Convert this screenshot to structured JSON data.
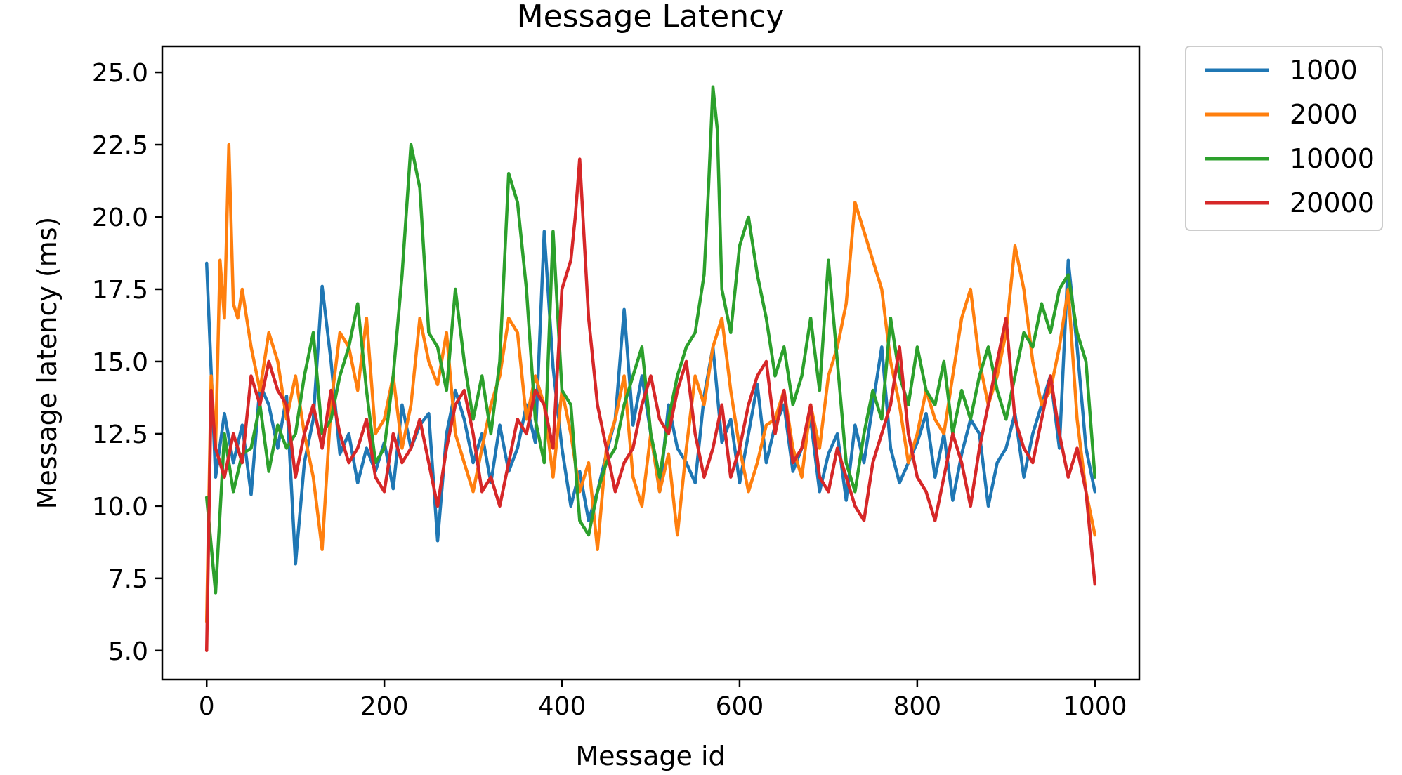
{
  "chart_data": {
    "type": "line",
    "title": "Message Latency",
    "xlabel": "Message id",
    "ylabel": "Message latency (ms)",
    "xlim": [
      -50,
      1050
    ],
    "ylim": [
      4.0,
      25.9
    ],
    "xticks": [
      0,
      200,
      400,
      600,
      800,
      1000
    ],
    "xtick_labels": [
      "0",
      "200",
      "400",
      "600",
      "800",
      "1000"
    ],
    "yticks": [
      5.0,
      7.5,
      10.0,
      12.5,
      15.0,
      17.5,
      20.0,
      22.5,
      25.0
    ],
    "ytick_labels": [
      "5.0",
      "7.5",
      "10.0",
      "12.5",
      "15.0",
      "17.5",
      "20.0",
      "22.5",
      "25.0"
    ],
    "grid": false,
    "legend_position": "outside-top-right",
    "series": [
      {
        "name": "1000",
        "color": "#1f77b4",
        "x": [
          0,
          10,
          20,
          30,
          40,
          50,
          60,
          70,
          80,
          90,
          100,
          110,
          120,
          130,
          140,
          150,
          160,
          170,
          180,
          190,
          200,
          210,
          220,
          230,
          240,
          250,
          260,
          270,
          280,
          290,
          300,
          310,
          320,
          330,
          340,
          350,
          360,
          370,
          380,
          390,
          400,
          410,
          420,
          430,
          440,
          450,
          460,
          470,
          480,
          490,
          500,
          510,
          520,
          530,
          540,
          550,
          560,
          570,
          580,
          590,
          600,
          610,
          620,
          630,
          640,
          650,
          660,
          670,
          680,
          690,
          700,
          710,
          720,
          730,
          740,
          750,
          760,
          770,
          780,
          790,
          800,
          810,
          820,
          830,
          840,
          850,
          860,
          870,
          880,
          890,
          900,
          910,
          920,
          930,
          940,
          950,
          960,
          970,
          980,
          990,
          1000
        ],
        "y": [
          18.4,
          11.0,
          13.2,
          11.5,
          12.8,
          10.4,
          14.2,
          13.5,
          12.0,
          13.8,
          8.0,
          11.5,
          13.0,
          17.6,
          15.0,
          11.8,
          12.5,
          10.8,
          12.0,
          11.2,
          12.2,
          10.6,
          13.5,
          12.0,
          12.8,
          13.2,
          8.8,
          12.5,
          14.0,
          13.0,
          11.5,
          12.5,
          10.8,
          12.8,
          11.2,
          12.0,
          13.5,
          12.2,
          19.5,
          14.8,
          12.0,
          10.0,
          11.2,
          9.5,
          10.5,
          11.8,
          13.0,
          16.8,
          12.8,
          14.5,
          12.5,
          10.5,
          13.5,
          12.0,
          11.5,
          10.8,
          13.8,
          15.5,
          12.2,
          13.0,
          10.8,
          12.5,
          14.2,
          11.5,
          12.8,
          13.5,
          11.2,
          12.0,
          13.0,
          10.5,
          11.8,
          12.5,
          10.2,
          12.8,
          11.5,
          13.5,
          15.5,
          12.0,
          10.8,
          11.5,
          12.2,
          13.2,
          11.0,
          12.5,
          10.2,
          11.8,
          13.0,
          12.5,
          10.0,
          11.5,
          12.0,
          13.2,
          11.0,
          12.5,
          13.5,
          14.5,
          12.0,
          18.5,
          15.5,
          12.0,
          10.5
        ]
      },
      {
        "name": "2000",
        "color": "#ff7f0e",
        "x": [
          0,
          5,
          10,
          15,
          20,
          25,
          30,
          35,
          40,
          50,
          60,
          70,
          80,
          90,
          100,
          110,
          120,
          130,
          140,
          150,
          160,
          170,
          180,
          190,
          200,
          210,
          220,
          230,
          240,
          250,
          260,
          270,
          280,
          290,
          300,
          310,
          320,
          330,
          340,
          350,
          360,
          370,
          380,
          390,
          400,
          410,
          420,
          430,
          440,
          450,
          460,
          470,
          480,
          490,
          500,
          510,
          520,
          530,
          540,
          550,
          560,
          570,
          580,
          590,
          600,
          610,
          620,
          630,
          640,
          650,
          660,
          670,
          680,
          690,
          700,
          710,
          720,
          730,
          740,
          750,
          760,
          770,
          780,
          790,
          800,
          810,
          820,
          830,
          840,
          850,
          860,
          870,
          880,
          890,
          900,
          910,
          920,
          930,
          940,
          950,
          960,
          970,
          980,
          990,
          1000
        ],
        "y": [
          6.0,
          14.5,
          12.0,
          18.5,
          16.5,
          22.5,
          17.0,
          16.5,
          17.5,
          15.5,
          14.0,
          16.0,
          15.0,
          13.0,
          14.5,
          12.5,
          11.0,
          8.5,
          13.5,
          16.0,
          15.5,
          14.0,
          16.5,
          12.5,
          13.0,
          14.5,
          12.0,
          13.5,
          16.5,
          15.0,
          14.2,
          16.0,
          12.5,
          11.5,
          10.5,
          12.0,
          13.5,
          14.5,
          16.5,
          16.0,
          13.0,
          14.5,
          13.5,
          11.0,
          14.0,
          12.5,
          10.5,
          11.5,
          8.5,
          12.0,
          13.0,
          14.5,
          11.0,
          10.0,
          12.5,
          10.5,
          11.8,
          9.0,
          12.0,
          14.5,
          13.5,
          15.5,
          16.5,
          14.0,
          12.0,
          10.5,
          11.5,
          12.8,
          13.0,
          14.0,
          12.0,
          11.0,
          13.5,
          12.0,
          14.5,
          15.5,
          17.0,
          20.5,
          19.5,
          18.5,
          17.5,
          15.0,
          13.5,
          11.5,
          12.5,
          14.0,
          13.0,
          12.5,
          14.5,
          16.5,
          17.5,
          15.0,
          13.5,
          14.5,
          16.0,
          19.0,
          17.5,
          15.0,
          13.5,
          14.0,
          15.5,
          17.5,
          13.0,
          10.5,
          9.0
        ]
      },
      {
        "name": "10000",
        "color": "#2ca02c",
        "x": [
          0,
          10,
          20,
          30,
          40,
          50,
          60,
          70,
          80,
          90,
          100,
          110,
          120,
          130,
          140,
          150,
          160,
          170,
          180,
          190,
          200,
          210,
          220,
          230,
          240,
          250,
          260,
          270,
          280,
          290,
          300,
          310,
          320,
          330,
          340,
          350,
          360,
          370,
          380,
          390,
          400,
          410,
          420,
          430,
          440,
          450,
          460,
          470,
          480,
          490,
          500,
          510,
          520,
          530,
          540,
          550,
          560,
          565,
          570,
          575,
          580,
          590,
          600,
          610,
          620,
          630,
          640,
          650,
          660,
          670,
          680,
          690,
          700,
          710,
          720,
          730,
          740,
          750,
          760,
          770,
          780,
          790,
          800,
          810,
          820,
          830,
          840,
          850,
          860,
          870,
          880,
          890,
          900,
          910,
          920,
          930,
          940,
          950,
          960,
          970,
          980,
          990,
          1000
        ],
        "y": [
          10.3,
          7.0,
          12.5,
          10.5,
          11.8,
          12.0,
          13.5,
          11.2,
          12.8,
          12.0,
          12.5,
          14.5,
          16.0,
          12.5,
          13.0,
          14.5,
          15.5,
          17.0,
          14.0,
          11.5,
          12.0,
          14.5,
          18.0,
          22.5,
          21.0,
          16.0,
          15.5,
          14.0,
          17.5,
          15.0,
          13.0,
          14.5,
          12.5,
          15.0,
          21.5,
          20.5,
          17.5,
          13.0,
          11.5,
          19.5,
          14.0,
          13.5,
          9.5,
          9.0,
          10.5,
          11.5,
          12.0,
          13.5,
          14.5,
          15.5,
          12.5,
          11.0,
          13.0,
          14.5,
          15.5,
          16.0,
          18.0,
          21.0,
          24.5,
          23.0,
          17.5,
          16.0,
          19.0,
          20.0,
          18.0,
          16.5,
          14.5,
          15.5,
          13.5,
          14.5,
          16.5,
          14.0,
          18.5,
          15.0,
          11.5,
          10.5,
          12.5,
          14.0,
          13.0,
          16.5,
          14.5,
          13.5,
          15.5,
          14.0,
          13.5,
          15.0,
          12.5,
          14.0,
          13.0,
          14.5,
          15.5,
          14.0,
          13.0,
          14.5,
          16.0,
          15.5,
          17.0,
          16.0,
          17.5,
          18.0,
          16.0,
          15.0,
          11.0
        ]
      },
      {
        "name": "20000",
        "color": "#d62728",
        "x": [
          0,
          5,
          10,
          20,
          30,
          40,
          50,
          60,
          70,
          80,
          90,
          100,
          110,
          120,
          130,
          140,
          150,
          160,
          170,
          180,
          190,
          200,
          210,
          220,
          230,
          240,
          250,
          260,
          270,
          280,
          290,
          300,
          310,
          320,
          330,
          340,
          350,
          360,
          370,
          380,
          390,
          400,
          410,
          415,
          420,
          430,
          440,
          450,
          460,
          470,
          480,
          490,
          500,
          510,
          520,
          530,
          540,
          550,
          560,
          570,
          580,
          590,
          600,
          610,
          620,
          630,
          640,
          650,
          660,
          670,
          680,
          690,
          700,
          710,
          720,
          730,
          740,
          750,
          760,
          770,
          780,
          790,
          800,
          810,
          820,
          830,
          840,
          850,
          860,
          870,
          880,
          890,
          900,
          910,
          920,
          930,
          940,
          950,
          960,
          970,
          980,
          990,
          1000
        ],
        "y": [
          5.0,
          14.0,
          12.0,
          11.0,
          12.5,
          11.5,
          14.5,
          13.5,
          15.0,
          14.0,
          13.5,
          11.0,
          12.5,
          13.5,
          12.0,
          14.0,
          12.5,
          11.5,
          12.0,
          13.0,
          11.0,
          10.5,
          12.5,
          11.5,
          12.0,
          13.0,
          11.5,
          10.0,
          12.0,
          13.5,
          14.0,
          12.5,
          10.5,
          11.0,
          10.0,
          11.5,
          13.0,
          12.5,
          14.0,
          13.5,
          12.0,
          17.5,
          18.5,
          20.0,
          22.0,
          16.5,
          13.5,
          12.0,
          10.5,
          11.5,
          12.0,
          13.5,
          14.5,
          13.0,
          12.5,
          14.0,
          15.0,
          12.5,
          11.0,
          12.0,
          13.5,
          11.0,
          12.0,
          13.5,
          14.5,
          15.0,
          12.5,
          14.0,
          11.5,
          12.0,
          13.5,
          11.0,
          10.5,
          12.0,
          11.0,
          10.0,
          9.5,
          11.5,
          12.5,
          13.5,
          15.5,
          12.5,
          11.0,
          10.5,
          9.5,
          11.0,
          12.5,
          11.5,
          10.0,
          12.0,
          13.5,
          15.0,
          16.5,
          13.0,
          12.0,
          11.5,
          13.0,
          14.5,
          12.5,
          11.0,
          12.0,
          10.5,
          7.3
        ]
      }
    ]
  }
}
